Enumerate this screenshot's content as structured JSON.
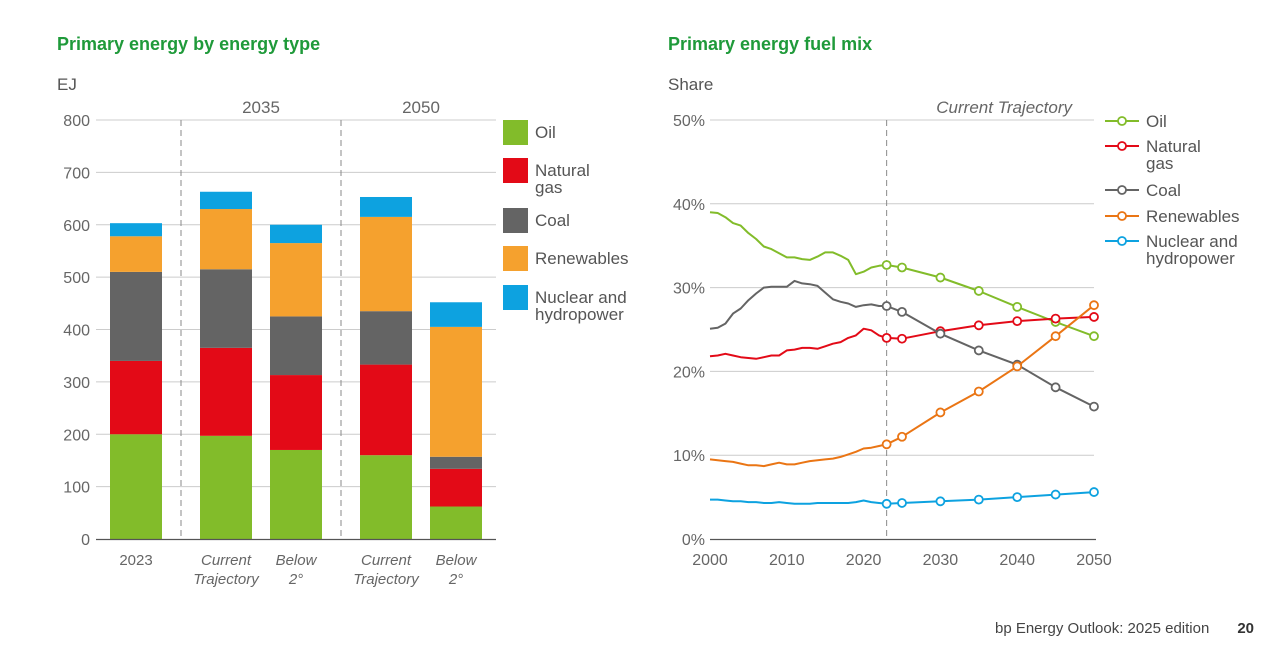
{
  "chart_data": [
    {
      "type": "bar",
      "stacked": true,
      "title": "Primary energy by energy type",
      "ylabel": "EJ",
      "ylim": [
        0,
        800
      ],
      "yticks": [
        0,
        100,
        200,
        300,
        400,
        500,
        600,
        700,
        800
      ],
      "groups": [
        "2035",
        "2050"
      ],
      "categories": [
        "2023",
        "Current Trajectory",
        "Below 2°",
        "Current Trajectory",
        "Below 2°"
      ],
      "series": [
        {
          "name": "Oil",
          "color": "#82bc2a",
          "values": [
            200,
            197,
            170,
            160,
            62
          ]
        },
        {
          "name": "Natural gas",
          "color": "#e30a17",
          "values": [
            140,
            168,
            143,
            173,
            72
          ]
        },
        {
          "name": "Coal",
          "color": "#646464",
          "values": [
            170,
            150,
            112,
            102,
            23
          ]
        },
        {
          "name": "Renewables",
          "color": "#f5a12e",
          "values": [
            68,
            115,
            140,
            180,
            248
          ]
        },
        {
          "name": "Nuclear and hydropower",
          "color": "#0da2e0",
          "values": [
            25,
            33,
            35,
            38,
            47
          ]
        }
      ],
      "legend": [
        "Oil",
        "Natural gas",
        "Coal",
        "Renewables",
        "Nuclear and hydropower"
      ]
    },
    {
      "type": "line",
      "title": "Primary energy fuel mix",
      "ylabel": "Share",
      "xlim": [
        2000,
        2050
      ],
      "ylim": [
        0,
        50
      ],
      "xticks": [
        2000,
        2010,
        2020,
        2030,
        2040,
        2050
      ],
      "yticks": [
        "0%",
        "10%",
        "20%",
        "30%",
        "40%",
        "50%"
      ],
      "annotation": "Current Trajectory",
      "annotation_x": 2023,
      "legend": [
        "Oil",
        "Natural gas",
        "Coal",
        "Renewables",
        "Nuclear and hydropower"
      ],
      "history_x": [
        2000,
        2001,
        2002,
        2003,
        2004,
        2005,
        2006,
        2007,
        2008,
        2009,
        2010,
        2011,
        2012,
        2013,
        2014,
        2015,
        2016,
        2017,
        2018,
        2019,
        2020,
        2021,
        2022,
        2023
      ],
      "projection_x": [
        2023,
        2025,
        2030,
        2035,
        2040,
        2045,
        2050
      ],
      "series": [
        {
          "name": "Oil",
          "color": "#82bc2a",
          "history": [
            39.0,
            38.9,
            38.4,
            37.7,
            37.4,
            36.5,
            35.8,
            34.9,
            34.6,
            34.1,
            33.6,
            33.6,
            33.4,
            33.3,
            33.7,
            34.2,
            34.2,
            33.8,
            33.3,
            31.6,
            31.9,
            32.4,
            32.6,
            32.7
          ],
          "projection": [
            32.7,
            32.4,
            31.2,
            29.6,
            27.7,
            25.9,
            24.2
          ]
        },
        {
          "name": "Natural gas",
          "color": "#e30a17",
          "history": [
            21.8,
            21.9,
            22.1,
            21.9,
            21.7,
            21.6,
            21.5,
            21.7,
            21.9,
            21.9,
            22.5,
            22.6,
            22.8,
            22.8,
            22.7,
            23.0,
            23.3,
            23.5,
            24.0,
            24.3,
            25.1,
            24.9,
            24.3,
            24.0
          ],
          "projection": [
            24.0,
            23.9,
            24.8,
            25.5,
            26.0,
            26.3,
            26.5
          ]
        },
        {
          "name": "Coal",
          "color": "#646464",
          "history": [
            25.1,
            25.2,
            25.7,
            26.9,
            27.5,
            28.5,
            29.3,
            30.0,
            30.1,
            30.1,
            30.1,
            30.8,
            30.5,
            30.4,
            30.2,
            29.4,
            28.6,
            28.3,
            28.1,
            27.7,
            27.9,
            28.0,
            27.8,
            27.8
          ],
          "projection": [
            27.8,
            27.1,
            24.5,
            22.5,
            20.8,
            18.1,
            15.8
          ]
        },
        {
          "name": "Renewables",
          "color": "#ea7514",
          "history": [
            9.5,
            9.4,
            9.3,
            9.2,
            9.0,
            8.8,
            8.8,
            8.7,
            8.9,
            9.1,
            8.9,
            8.9,
            9.1,
            9.3,
            9.4,
            9.5,
            9.6,
            9.8,
            10.1,
            10.4,
            10.8,
            10.9,
            11.1,
            11.3
          ],
          "projection": [
            11.3,
            12.2,
            15.1,
            17.6,
            20.6,
            24.2,
            27.9
          ]
        },
        {
          "name": "Nuclear and hydropower",
          "color": "#0da2e0",
          "history": [
            4.7,
            4.7,
            4.6,
            4.5,
            4.5,
            4.4,
            4.4,
            4.3,
            4.3,
            4.4,
            4.3,
            4.2,
            4.2,
            4.2,
            4.3,
            4.3,
            4.3,
            4.3,
            4.3,
            4.4,
            4.6,
            4.4,
            4.3,
            4.2
          ],
          "projection": [
            4.2,
            4.3,
            4.5,
            4.7,
            5.0,
            5.3,
            5.6
          ]
        }
      ]
    }
  ],
  "footer": {
    "text": "bp Energy Outlook: 2025 edition",
    "page": "20"
  }
}
